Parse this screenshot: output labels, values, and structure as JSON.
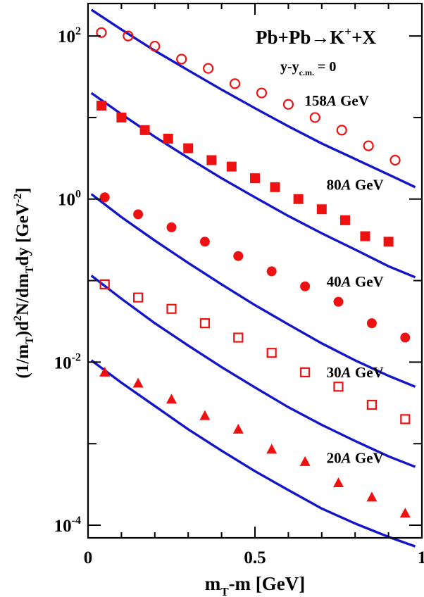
{
  "chart_data": {
    "type": "scatter",
    "title": "Pb+Pb→K⁺+X",
    "subtitle": "y-y_c.m. = 0",
    "subtitle_parts": {
      "main": "y-y",
      "sub": "c.m.",
      "tail": " = 0"
    },
    "title_parts": {
      "main": "Pb+Pb→K",
      "sup": "+",
      "tail": "+X"
    },
    "xlabel": "m_T-m [GeV]",
    "xlabel_parts": {
      "a": "m",
      "sub": "T",
      "b": "-m [GeV]"
    },
    "ylabel": "(1/m_T)d²N/dm_Tdy   [GeV⁻²]",
    "ylabel_parts": {
      "a": "(1/m",
      "s1": "T",
      "b": ")d",
      "s2": "2",
      "c": "N/dm",
      "s3": "T",
      "d": "dy   [GeV",
      "s4": "-2",
      "e": "]"
    },
    "xlim": [
      0,
      1.0
    ],
    "ylim": [
      7e-05,
      250
    ],
    "yscale": "log",
    "x_ticks": [
      {
        "value": 0,
        "label": "0"
      },
      {
        "value": 0.5,
        "label": "0.5"
      },
      {
        "value": 1,
        "label": "1"
      }
    ],
    "y_ticks": [
      {
        "value": 100,
        "base": "10",
        "exp": "2"
      },
      {
        "value": 1,
        "base": "10",
        "exp": "0"
      },
      {
        "value": 0.01,
        "base": "10",
        "exp": "-2"
      },
      {
        "value": 0.0001,
        "base": "10",
        "exp": "-4"
      }
    ],
    "grid": false,
    "colors": {
      "data": "#ee1111",
      "model": "#1515c8"
    },
    "series": [
      {
        "name": "158A GeV",
        "label_parts": {
          "num": "158",
          "italic": "A",
          "unit": " GeV"
        },
        "label_pos": [
          0.745,
          14
        ],
        "marker": "open-circle",
        "x": [
          0.04,
          0.12,
          0.2,
          0.28,
          0.36,
          0.44,
          0.52,
          0.6,
          0.68,
          0.76,
          0.84,
          0.92
        ],
        "y": [
          110,
          100,
          75,
          52,
          40,
          26,
          20,
          14.5,
          10,
          7,
          4.5,
          3
        ],
        "model": {
          "x": [
            0.01,
            0.1,
            0.2,
            0.3,
            0.4,
            0.5,
            0.6,
            0.7,
            0.8,
            0.9,
            0.98
          ],
          "y": [
            210,
            120,
            66,
            38,
            22,
            13,
            7.8,
            4.8,
            3.1,
            2.0,
            1.4
          ]
        }
      },
      {
        "name": "80A GeV",
        "label_parts": {
          "num": "80",
          "italic": "A",
          "unit": " GeV"
        },
        "label_pos": [
          0.8,
          1.3
        ],
        "marker": "filled-square",
        "x": [
          0.04,
          0.1,
          0.17,
          0.24,
          0.3,
          0.37,
          0.43,
          0.5,
          0.56,
          0.63,
          0.7,
          0.77,
          0.83,
          0.9
        ],
        "y": [
          14,
          10,
          7,
          5.5,
          4.2,
          3.0,
          2.5,
          1.8,
          1.4,
          1.0,
          0.75,
          0.55,
          0.35,
          0.3
        ],
        "model": {
          "x": [
            0.01,
            0.1,
            0.2,
            0.3,
            0.4,
            0.5,
            0.6,
            0.7,
            0.8,
            0.9,
            0.98
          ],
          "y": [
            20,
            11,
            5.8,
            3.2,
            1.8,
            1.05,
            0.62,
            0.38,
            0.24,
            0.15,
            0.11
          ]
        }
      },
      {
        "name": "40A GeV",
        "label_parts": {
          "num": "40",
          "italic": "A",
          "unit": " GeV"
        },
        "label_pos": [
          0.8,
          0.085
        ],
        "marker": "filled-circle",
        "x": [
          0.05,
          0.15,
          0.25,
          0.35,
          0.45,
          0.55,
          0.65,
          0.75,
          0.85,
          0.95
        ],
        "y": [
          1.05,
          0.65,
          0.45,
          0.3,
          0.2,
          0.13,
          0.085,
          0.055,
          0.03,
          0.02
        ],
        "model": {
          "x": [
            0.01,
            0.1,
            0.2,
            0.3,
            0.4,
            0.5,
            0.6,
            0.7,
            0.8,
            0.9,
            0.98
          ],
          "y": [
            1.15,
            0.6,
            0.31,
            0.165,
            0.09,
            0.05,
            0.029,
            0.017,
            0.0105,
            0.0068,
            0.005
          ]
        }
      },
      {
        "name": "30A GeV",
        "label_parts": {
          "num": "30",
          "italic": "A",
          "unit": " GeV"
        },
        "label_pos": [
          0.8,
          0.0065
        ],
        "marker": "open-square",
        "x": [
          0.05,
          0.15,
          0.25,
          0.35,
          0.45,
          0.55,
          0.65,
          0.75,
          0.85,
          0.95
        ],
        "y": [
          0.09,
          0.062,
          0.045,
          0.03,
          0.02,
          0.013,
          0.0075,
          0.005,
          0.003,
          0.002
        ],
        "model": {
          "x": [
            0.01,
            0.1,
            0.2,
            0.3,
            0.4,
            0.5,
            0.6,
            0.7,
            0.8,
            0.9,
            0.98
          ],
          "y": [
            0.115,
            0.06,
            0.03,
            0.016,
            0.0087,
            0.0049,
            0.0028,
            0.0017,
            0.00108,
            0.0007,
            0.00052
          ]
        }
      },
      {
        "name": "20A GeV",
        "label_parts": {
          "num": "20",
          "italic": "A",
          "unit": " GeV"
        },
        "label_pos": [
          0.8,
          0.00058
        ],
        "marker": "filled-triangle",
        "x": [
          0.05,
          0.15,
          0.25,
          0.35,
          0.45,
          0.55,
          0.65,
          0.75,
          0.85,
          0.95
        ],
        "y": [
          0.0075,
          0.0055,
          0.0035,
          0.0022,
          0.0015,
          0.00085,
          0.0006,
          0.00033,
          0.00022,
          0.00014
        ],
        "model": {
          "x": [
            0.01,
            0.1,
            0.2,
            0.3,
            0.4,
            0.5,
            0.6,
            0.7,
            0.8,
            0.9,
            0.98
          ],
          "y": [
            0.0105,
            0.0056,
            0.0029,
            0.0015,
            0.00082,
            0.00046,
            0.00027,
            0.00016,
            0.000105,
            7.2e-05,
            5.5e-05
          ]
        }
      }
    ]
  }
}
